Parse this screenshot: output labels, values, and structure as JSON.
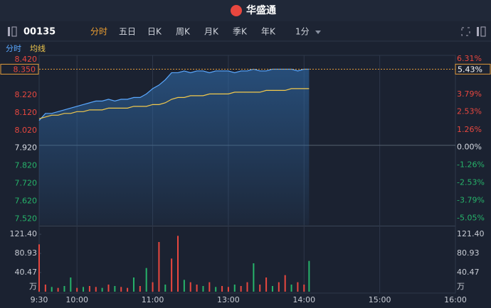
{
  "header": {
    "logo": "华盛通"
  },
  "toolbar": {
    "symbol": "00135",
    "tabs": [
      "分时",
      "五日",
      "日K",
      "周K",
      "月K",
      "季K",
      "年K",
      "1分"
    ],
    "selected": 0
  },
  "chart_data": [
    {
      "type": "line",
      "x": [
        0,
        5,
        10,
        15,
        20,
        25,
        30,
        35,
        40,
        45,
        50,
        55,
        60,
        65,
        70,
        75,
        80,
        85,
        90,
        95,
        100,
        105,
        110,
        115,
        120,
        125,
        130,
        135,
        140,
        145,
        150,
        155,
        160,
        165,
        170,
        175,
        180,
        185,
        190,
        195,
        200,
        205,
        210,
        214
      ],
      "series": [
        {
          "name": "分时",
          "color": "#5aa8ff",
          "values": [
            8.06,
            8.1,
            8.1,
            8.11,
            8.12,
            8.13,
            8.14,
            8.15,
            8.16,
            8.17,
            8.17,
            8.18,
            8.17,
            8.18,
            8.18,
            8.19,
            8.19,
            8.21,
            8.24,
            8.26,
            8.29,
            8.33,
            8.33,
            8.34,
            8.33,
            8.34,
            8.34,
            8.33,
            8.34,
            8.34,
            8.34,
            8.33,
            8.34,
            8.34,
            8.35,
            8.34,
            8.34,
            8.35,
            8.35,
            8.35,
            8.35,
            8.34,
            8.35,
            8.35
          ]
        },
        {
          "name": "均线",
          "color": "#f2c94c",
          "values": [
            8.07,
            8.08,
            8.09,
            8.09,
            8.1,
            8.1,
            8.11,
            8.11,
            8.12,
            8.12,
            8.12,
            8.13,
            8.13,
            8.13,
            8.13,
            8.14,
            8.14,
            8.14,
            8.15,
            8.15,
            8.16,
            8.18,
            8.19,
            8.19,
            8.2,
            8.2,
            8.2,
            8.21,
            8.21,
            8.21,
            8.21,
            8.22,
            8.22,
            8.22,
            8.22,
            8.22,
            8.23,
            8.23,
            8.23,
            8.23,
            8.24,
            8.24,
            8.24,
            8.24
          ]
        }
      ],
      "xlim": [
        0,
        330
      ],
      "xticks": [
        {
          "value": 0,
          "label": "9:30"
        },
        {
          "value": 30,
          "label": "10:00"
        },
        {
          "value": 90,
          "label": "11:00"
        },
        {
          "value": 150,
          "label": "13:00"
        },
        {
          "value": 210,
          "label": "14:00"
        },
        {
          "value": 270,
          "label": "15:00"
        },
        {
          "value": 330,
          "label": "16:00"
        }
      ],
      "ylim": [
        7.47,
        8.42
      ],
      "yticks": [
        {
          "value": 8.42,
          "label": "8.420"
        },
        {
          "value": 8.22,
          "label": "8.220"
        },
        {
          "value": 8.12,
          "label": "8.120"
        },
        {
          "value": 8.02,
          "label": "8.020"
        },
        {
          "value": 7.92,
          "label": "7.920"
        },
        {
          "value": 7.82,
          "label": "7.820"
        },
        {
          "value": 7.72,
          "label": "7.720"
        },
        {
          "value": 7.62,
          "label": "7.620"
        },
        {
          "value": 7.52,
          "label": "7.520"
        }
      ],
      "y2lim": [
        -5.68,
        6.31
      ],
      "y2ticks": [
        {
          "value": 6.31,
          "label": "6.31%"
        },
        {
          "value": 3.79,
          "label": "3.79%"
        },
        {
          "value": 2.53,
          "label": "2.53%"
        },
        {
          "value": 1.26,
          "label": "1.26%"
        },
        {
          "value": 0,
          "label": "0.00%"
        },
        {
          "value": -1.26,
          "label": "-1.26%"
        },
        {
          "value": -2.53,
          "label": "-2.53%"
        },
        {
          "value": -3.79,
          "label": "-3.79%"
        },
        {
          "value": -5.05,
          "label": "-5.05%"
        }
      ],
      "current_price": {
        "value": 8.35,
        "label": "8.350"
      },
      "current_change": {
        "value": 5.43,
        "label": "5.43%"
      },
      "grid": true
    },
    {
      "type": "bar",
      "x": [
        0,
        5,
        10,
        15,
        20,
        25,
        30,
        35,
        40,
        45,
        50,
        55,
        60,
        65,
        70,
        75,
        80,
        85,
        90,
        95,
        100,
        105,
        110,
        115,
        120,
        125,
        130,
        135,
        140,
        145,
        150,
        155,
        160,
        165,
        170,
        175,
        180,
        185,
        190,
        195,
        200,
        205,
        210,
        214
      ],
      "values": [
        100,
        15,
        10,
        8,
        12,
        30,
        8,
        10,
        12,
        10,
        8,
        15,
        12,
        10,
        8,
        30,
        12,
        50,
        20,
        105,
        15,
        70,
        118,
        25,
        20,
        15,
        12,
        20,
        10,
        12,
        10,
        15,
        12,
        20,
        60,
        15,
        30,
        12,
        20,
        35,
        15,
        20,
        15,
        65
      ],
      "colors": [
        "#e8473f",
        "#e8473f",
        "#26b36a",
        "#e8473f",
        "#26b36a",
        "#26b36a",
        "#e8473f",
        "#26b36a",
        "#e8473f",
        "#e8473f",
        "#26b36a",
        "#e8473f",
        "#26b36a",
        "#e8473f",
        "#e8473f",
        "#26b36a",
        "#e8473f",
        "#26b36a",
        "#e8473f",
        "#e8473f",
        "#26b36a",
        "#e8473f",
        "#e8473f",
        "#26b36a",
        "#e8473f",
        "#e8473f",
        "#26b36a",
        "#e8473f",
        "#26b36a",
        "#e8473f",
        "#e8473f",
        "#26b36a",
        "#e8473f",
        "#e8473f",
        "#26b36a",
        "#e8473f",
        "#e8473f",
        "#26b36a",
        "#e8473f",
        "#e8473f",
        "#26b36a",
        "#e8473f",
        "#e8473f",
        "#26b36a"
      ],
      "xlim": [
        0,
        330
      ],
      "ylim": [
        0,
        136.5
      ],
      "yticks": [
        {
          "value": 121.4,
          "label": "121.40"
        },
        {
          "value": 80.93,
          "label": "80.93"
        },
        {
          "value": 40.47,
          "label": "40.47"
        }
      ],
      "unit": "万"
    }
  ]
}
